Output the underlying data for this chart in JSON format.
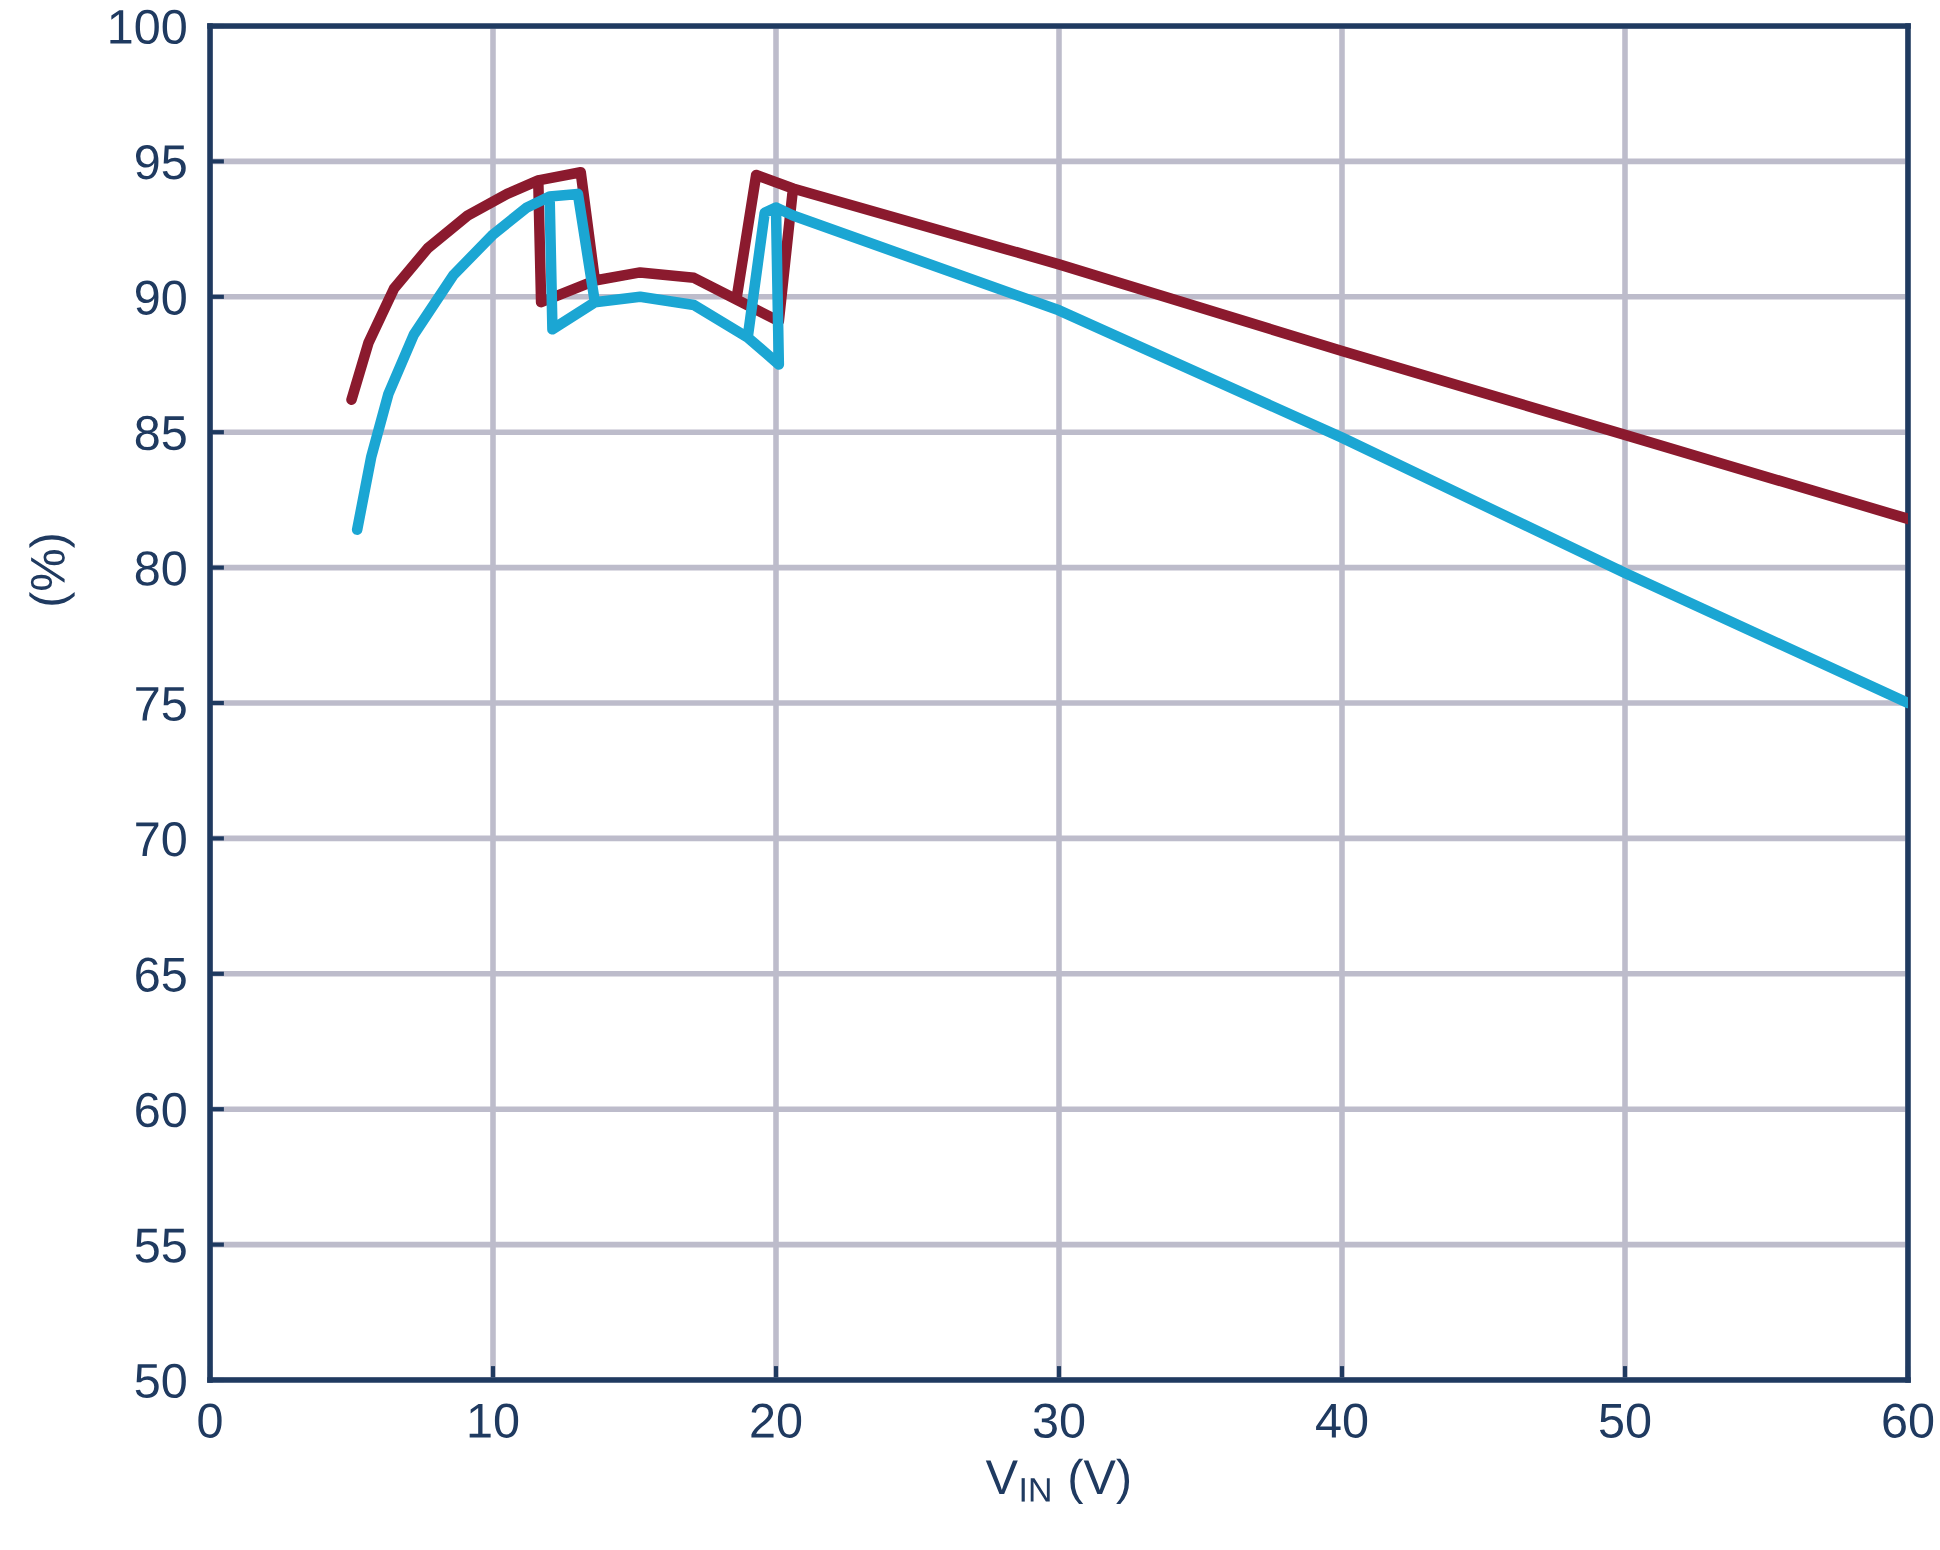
{
  "chart_data": {
    "type": "line",
    "xlabel": "V$_{IN}$ (V)",
    "ylabel": "(%)",
    "xlim": [
      0,
      60
    ],
    "ylim": [
      50,
      100
    ],
    "xticks": [
      0,
      10,
      20,
      30,
      40,
      50,
      60
    ],
    "yticks": [
      50,
      55,
      60,
      65,
      70,
      75,
      80,
      85,
      90,
      95,
      100
    ],
    "grid": true,
    "series": [
      {
        "color": "#8b1a2e",
        "x": [
          5.0,
          5.6,
          6.5,
          7.7,
          9.1,
          10.5,
          11.6,
          13.1,
          13.6,
          11.7,
          11.6,
          11.7,
          13.6,
          15.2,
          17.1,
          18.6,
          20.1,
          20.6,
          19.3,
          18.6,
          19.3,
          20.6,
          30,
          40,
          50,
          60
        ],
        "values": [
          86.2,
          88.3,
          90.3,
          91.8,
          93.0,
          93.8,
          94.3,
          94.6,
          90.6,
          89.8,
          94.3,
          89.8,
          90.6,
          90.9,
          90.7,
          89.9,
          89.1,
          94.0,
          94.5,
          89.9,
          94.5,
          94.0,
          91.2,
          88.0,
          84.9,
          81.8
        ]
      },
      {
        "color": "#1ba6d3",
        "x": [
          5.2,
          5.7,
          6.3,
          7.2,
          8.6,
          10.0,
          11.2,
          12.0,
          13.0,
          13.6,
          12.1,
          12.0,
          12.1,
          13.6,
          15.2,
          17.1,
          19.0,
          20.1,
          20.0,
          19.6,
          19.0,
          19.6,
          20.0,
          20.6,
          30,
          40,
          50,
          60
        ],
        "values": [
          81.4,
          84.1,
          86.4,
          88.6,
          90.8,
          92.3,
          93.3,
          93.7,
          93.8,
          89.8,
          88.8,
          93.7,
          88.8,
          89.8,
          90.0,
          89.7,
          88.5,
          87.5,
          93.3,
          93.1,
          88.5,
          93.1,
          93.3,
          93.0,
          89.5,
          84.8,
          79.8,
          75.0
        ]
      }
    ]
  }
}
